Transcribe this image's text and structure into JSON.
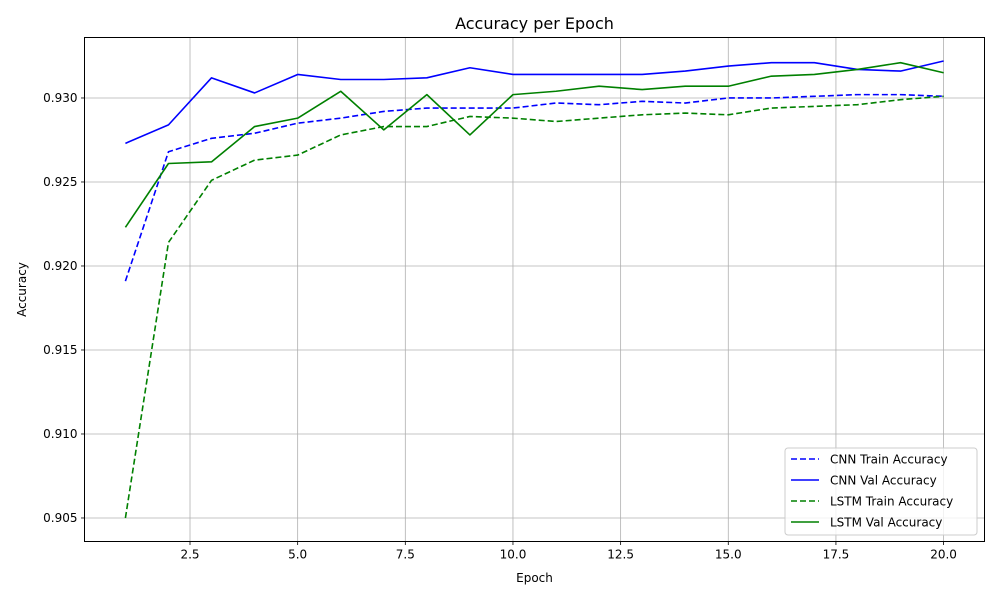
{
  "chart_data": {
    "type": "line",
    "title": "Accuracy per Epoch",
    "xlabel": "Epoch",
    "ylabel": "Accuracy",
    "x": [
      1,
      2,
      3,
      4,
      5,
      6,
      7,
      8,
      9,
      10,
      11,
      12,
      13,
      14,
      15,
      16,
      17,
      18,
      19,
      20
    ],
    "xlim": [
      0.05,
      20.95
    ],
    "ylim": [
      0.9036,
      0.9336
    ],
    "xticks": [
      2.5,
      5.0,
      7.5,
      10.0,
      12.5,
      15.0,
      17.5,
      20.0
    ],
    "xtick_labels": [
      "2.5",
      "5.0",
      "7.5",
      "10.0",
      "12.5",
      "15.0",
      "17.5",
      "20.0"
    ],
    "yticks": [
      0.905,
      0.91,
      0.915,
      0.92,
      0.925,
      0.93
    ],
    "ytick_labels": [
      "0.905",
      "0.910",
      "0.915",
      "0.920",
      "0.925",
      "0.930"
    ],
    "grid": true,
    "legend_position": "lower-right",
    "series": [
      {
        "name": "CNN Train Accuracy",
        "color": "#0000ff",
        "dash": "dashed",
        "values": [
          0.9191,
          0.9268,
          0.9276,
          0.9279,
          0.9285,
          0.9288,
          0.9292,
          0.9294,
          0.9294,
          0.9294,
          0.9297,
          0.9296,
          0.9298,
          0.9297,
          0.93,
          0.93,
          0.9301,
          0.9302,
          0.9302,
          0.9301
        ]
      },
      {
        "name": "CNN Val Accuracy",
        "color": "#0000ff",
        "dash": "solid",
        "values": [
          0.9273,
          0.9284,
          0.9312,
          0.9303,
          0.9314,
          0.9311,
          0.9311,
          0.9312,
          0.9318,
          0.9314,
          0.9314,
          0.9314,
          0.9314,
          0.9316,
          0.9319,
          0.9321,
          0.9321,
          0.9317,
          0.9316,
          0.9322
        ]
      },
      {
        "name": "LSTM Train Accuracy",
        "color": "#008000",
        "dash": "dashed",
        "values": [
          0.905,
          0.9214,
          0.9251,
          0.9263,
          0.9266,
          0.9278,
          0.9283,
          0.9283,
          0.9289,
          0.9288,
          0.9286,
          0.9288,
          0.929,
          0.9291,
          0.929,
          0.9294,
          0.9295,
          0.9296,
          0.9299,
          0.9301
        ]
      },
      {
        "name": "LSTM Val Accuracy",
        "color": "#008000",
        "dash": "solid",
        "values": [
          0.9223,
          0.9261,
          0.9262,
          0.9283,
          0.9288,
          0.9304,
          0.9281,
          0.9302,
          0.9278,
          0.9302,
          0.9304,
          0.9307,
          0.9305,
          0.9307,
          0.9307,
          0.9313,
          0.9314,
          0.9317,
          0.9321,
          0.9315
        ]
      }
    ]
  }
}
